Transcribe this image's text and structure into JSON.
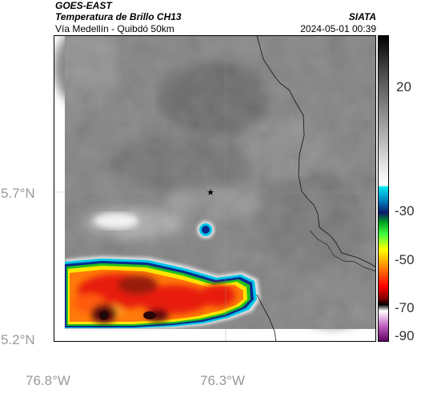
{
  "header": {
    "line1": "GOES-EAST",
    "line2": "Temperatura de Brillo CH13",
    "line3": "Vía Medellín - Quibdó 50km",
    "organization": "SIATA",
    "datetime": "2024-05-01 00:39"
  },
  "map": {
    "lat_ticks": [
      "5.7°N",
      "5.2°N"
    ],
    "lon_ticks": [
      "76.8°W",
      "76.3°W"
    ],
    "marker_icon": "star-icon",
    "colors": {
      "cloud_cold_core": "#2a0606",
      "cloud_red": "#e81a10",
      "cloud_orange": "#ff7a0a",
      "cloud_yellow": "#ffe600",
      "cloud_green": "#22c020",
      "cloud_edge_cyan": "#00c6e8",
      "cloud_edge_blue": "#0a2a8c",
      "background_gray": "#7a7a7a"
    }
  },
  "colorbar": {
    "labels": [
      "20",
      "-30",
      "-50",
      "-70",
      "-90"
    ]
  }
}
